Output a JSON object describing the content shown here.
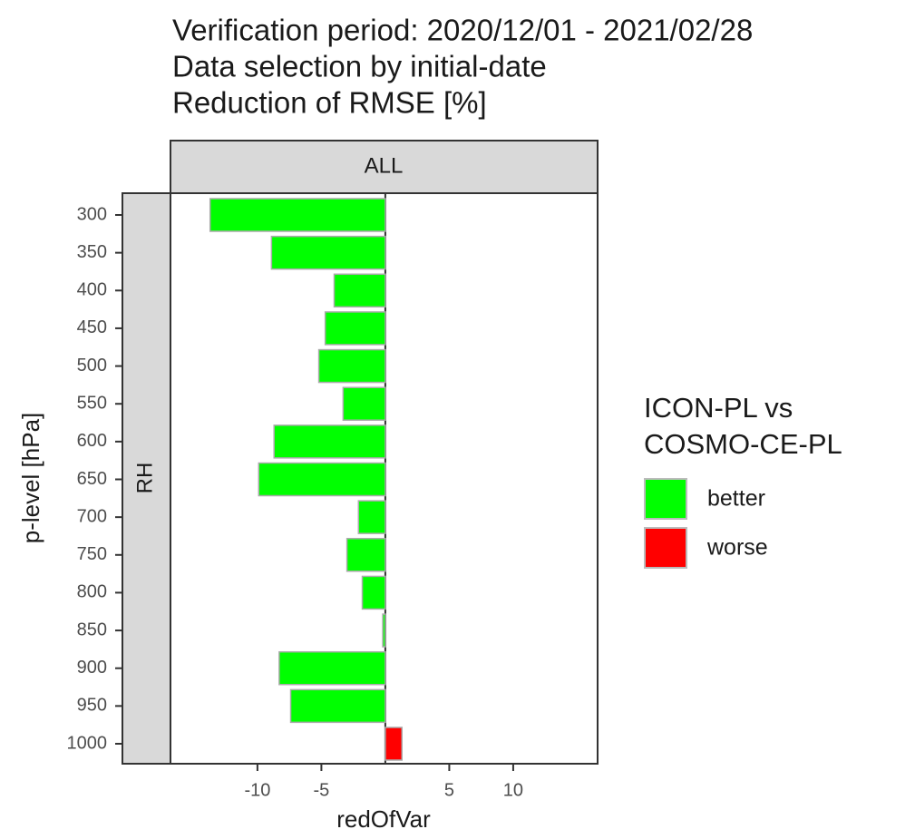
{
  "chart_data": {
    "type": "bar",
    "orientation": "horizontal",
    "title_lines": [
      "Verification period: 2020/12/01 - 2021/02/28",
      "Data selection by initial-date",
      "Reduction of RMSE [%]"
    ],
    "facet_column": "ALL",
    "facet_row": "RH",
    "x_label": "redOfVar",
    "y_label": "p-level [hPa]",
    "categories": [
      "300",
      "350",
      "400",
      "450",
      "500",
      "550",
      "600",
      "650",
      "700",
      "750",
      "800",
      "850",
      "900",
      "950",
      "1000"
    ],
    "values": [
      -13.7,
      -8.9,
      -4.0,
      -4.7,
      -5.2,
      -3.3,
      -8.7,
      -9.9,
      -2.1,
      -3.0,
      -1.8,
      -0.2,
      -8.3,
      -7.4,
      1.3
    ],
    "xlim": [
      -16.8,
      16.6
    ],
    "xticks": [
      -10,
      -5,
      5,
      10
    ],
    "legend_title_lines": [
      "ICON-PL vs",
      "COSMO-CE-PL"
    ],
    "legend": [
      {
        "name": "better",
        "color": "#00ff00"
      },
      {
        "name": "worse",
        "color": "#ff0000"
      }
    ],
    "legend_position": "right"
  }
}
